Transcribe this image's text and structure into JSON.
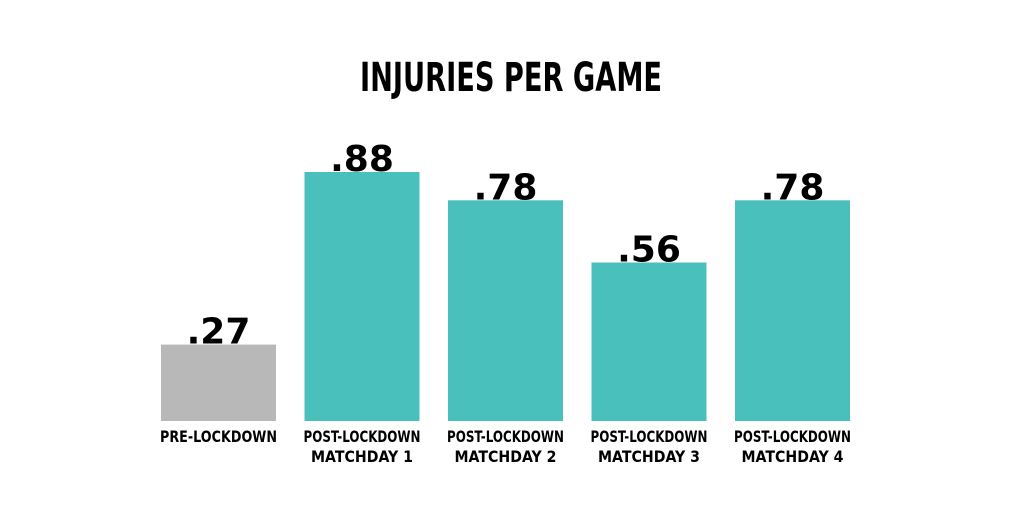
{
  "chart_data": {
    "type": "bar",
    "title": "INJURIES PER GAME",
    "categories": [
      [
        "PRE-LOCKDOWN"
      ],
      [
        "POST-LOCKDOWN",
        "MATCHDAY 1"
      ],
      [
        "POST-LOCKDOWN",
        "MATCHDAY 2"
      ],
      [
        "POST-LOCKDOWN",
        "MATCHDAY 3"
      ],
      [
        "POST-LOCKDOWN",
        "MATCHDAY 4"
      ]
    ],
    "values": [
      0.27,
      0.88,
      0.78,
      0.56,
      0.78
    ],
    "value_labels": [
      ".27",
      ".88",
      ".78",
      ".56",
      ".78"
    ],
    "colors": [
      "#b8b8b8",
      "#49c0bb",
      "#49c0bb",
      "#49c0bb",
      "#49c0bb"
    ],
    "xlabel": "",
    "ylabel": "",
    "ylim": [
      0,
      0.88
    ],
    "grid": false,
    "legend": "none"
  }
}
